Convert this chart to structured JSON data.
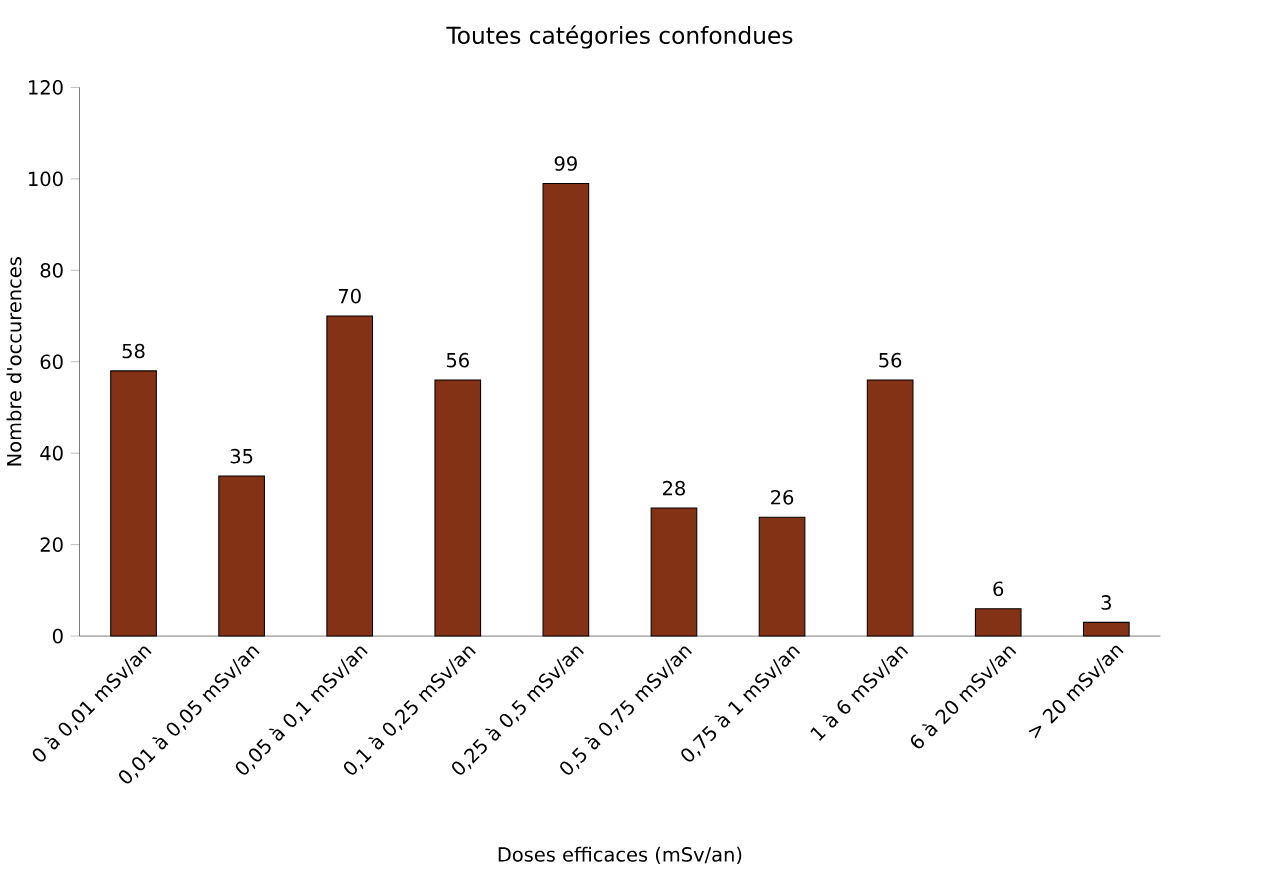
{
  "chart_data": {
    "type": "bar",
    "title": "Toutes catégories confondues",
    "xlabel": "Doses efficaces (mSv/an)",
    "ylabel": "Nombre d'occurences",
    "categories": [
      "0 à 0,01 mSv/an",
      "0,01 à 0,05 mSv/an",
      "0,05 à 0,1 mSv/an",
      "0,1 à 0,25 mSv/an",
      "0,25 à 0,5 mSv/an",
      "0,5 à 0,75 mSv/an",
      "0,75 à 1 mSv/an",
      "1 à 6 mSv/an",
      "6 à 20 mSv/an",
      "> 20 mSv/an"
    ],
    "values": [
      58,
      35,
      70,
      56,
      99,
      28,
      26,
      56,
      6,
      3
    ],
    "color": "#843215",
    "ylim": [
      0,
      120
    ],
    "yticks": [
      0,
      20,
      40,
      60,
      80,
      100,
      120
    ],
    "data_labels": true
  }
}
